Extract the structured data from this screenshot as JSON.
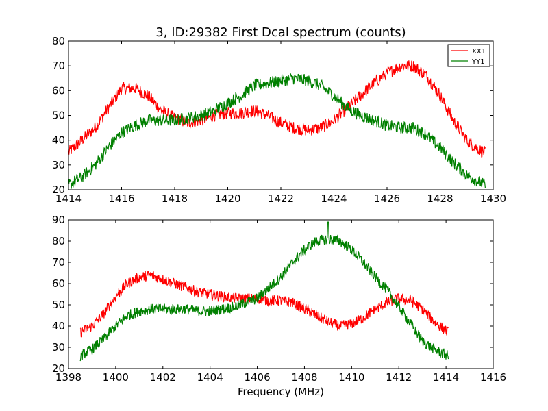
{
  "chart_data": {
    "title": "3, ID:29382 First Dcal spectrum (counts)",
    "xlabel": "Frequency (MHz)",
    "legend": {
      "placement": "top-right",
      "entries": [
        "XX1",
        "YY1"
      ]
    },
    "colors": {
      "XX1": "#ff0000",
      "YY1": "#008000"
    },
    "panels": [
      {
        "type": "line",
        "xlim": [
          1414,
          1430
        ],
        "ylim": [
          20,
          80
        ],
        "xticks": [
          "1414",
          "1416",
          "1418",
          "1420",
          "1422",
          "1424",
          "1426",
          "1428",
          "1430"
        ],
        "yticks": [
          "20",
          "30",
          "40",
          "50",
          "60",
          "70",
          "80"
        ],
        "x_range": [
          1414.0,
          1429.7
        ],
        "series": [
          {
            "name": "XX1",
            "x": [
              1414.0,
              1414.5,
              1415.0,
              1415.5,
              1416.0,
              1416.5,
              1417.0,
              1417.5,
              1418.0,
              1418.5,
              1419.0,
              1419.5,
              1420.0,
              1420.5,
              1421.0,
              1421.5,
              1422.0,
              1422.5,
              1423.0,
              1423.5,
              1424.0,
              1424.5,
              1425.0,
              1425.5,
              1426.0,
              1426.5,
              1427.0,
              1427.5,
              1428.0,
              1428.5,
              1429.0,
              1429.5,
              1429.7
            ],
            "values": [
              35,
              40,
              45,
              53,
              61,
              61,
              58,
              52,
              49,
              47,
              48,
              50,
              51,
              51,
              52,
              50,
              47,
              45,
              44,
              45,
              48,
              53,
              58,
              63,
              67,
              70,
              70,
              66,
              58,
              48,
              40,
              36,
              35
            ]
          },
          {
            "name": "YY1",
            "x": [
              1414.0,
              1414.5,
              1415.0,
              1415.5,
              1416.0,
              1416.5,
              1417.0,
              1417.5,
              1418.0,
              1418.5,
              1419.0,
              1419.5,
              1420.0,
              1420.5,
              1421.0,
              1421.5,
              1422.0,
              1422.5,
              1423.0,
              1423.5,
              1424.0,
              1424.5,
              1425.0,
              1425.5,
              1426.0,
              1426.5,
              1427.0,
              1427.5,
              1428.0,
              1428.5,
              1429.0,
              1429.5,
              1429.7
            ],
            "values": [
              22,
              25,
              30,
              37,
              43,
              46,
              48,
              48,
              48,
              49,
              50,
              52,
              55,
              58,
              62,
              63,
              64,
              65,
              64,
              62,
              58,
              53,
              50,
              48,
              46,
              45,
              45,
              42,
              37,
              31,
              26,
              23,
              22
            ]
          }
        ]
      },
      {
        "type": "line",
        "xlim": [
          1398,
          1416
        ],
        "ylim": [
          20,
          90
        ],
        "xticks": [
          "1398",
          "1400",
          "1402",
          "1404",
          "1406",
          "1408",
          "1410",
          "1412",
          "1414",
          "1416"
        ],
        "yticks": [
          "20",
          "30",
          "40",
          "50",
          "60",
          "70",
          "80",
          "90"
        ],
        "x_range": [
          1398.5,
          1414.1
        ],
        "series": [
          {
            "name": "XX1",
            "x": [
              1398.5,
              1399.0,
              1399.5,
              1400.0,
              1400.5,
              1401.0,
              1401.5,
              1402.0,
              1402.5,
              1403.0,
              1403.5,
              1404.0,
              1404.5,
              1405.0,
              1405.5,
              1406.0,
              1406.5,
              1407.0,
              1407.5,
              1408.0,
              1408.5,
              1409.0,
              1409.5,
              1410.0,
              1410.5,
              1411.0,
              1411.5,
              1412.0,
              1412.5,
              1413.0,
              1413.5,
              1414.1
            ],
            "values": [
              37,
              40,
              46,
              54,
              60,
              63,
              64,
              62,
              60,
              58,
              56,
              55,
              54,
              53,
              53,
              53,
              52,
              52,
              51,
              48,
              45,
              42,
              40,
              41,
              44,
              48,
              51,
              53,
              52,
              48,
              42,
              37
            ]
          },
          {
            "name": "YY1",
            "x": [
              1398.5,
              1399.0,
              1399.5,
              1400.0,
              1400.5,
              1401.0,
              1401.5,
              1402.0,
              1402.5,
              1403.0,
              1403.5,
              1404.0,
              1404.5,
              1405.0,
              1405.5,
              1406.0,
              1406.5,
              1407.0,
              1407.5,
              1408.0,
              1408.5,
              1409.0,
              1409.5,
              1410.0,
              1410.5,
              1411.0,
              1411.5,
              1412.0,
              1412.5,
              1413.0,
              1413.5,
              1414.1
            ],
            "values": [
              26,
              29,
              34,
              40,
              45,
              47,
              48,
              48,
              48,
              48,
              47,
              47,
              48,
              49,
              51,
              53,
              58,
              63,
              70,
              76,
              80,
              81,
              80,
              76,
              70,
              63,
              57,
              49,
              41,
              33,
              29,
              26
            ]
          }
        ]
      }
    ]
  }
}
